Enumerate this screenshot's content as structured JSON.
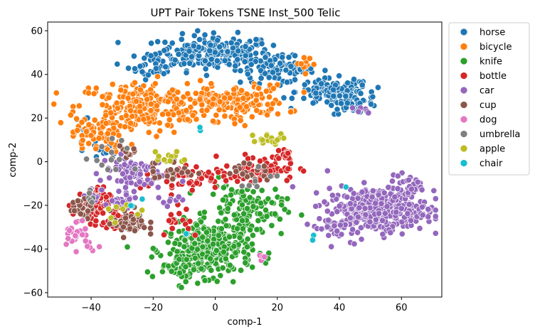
{
  "chart_data": {
    "type": "scatter",
    "title": "UPT Pair Tokens TSNE Inst_500 Telic",
    "xlabel": "comp-1",
    "ylabel": "comp-2",
    "xlim": [
      -54,
      73
    ],
    "ylim": [
      -62,
      64
    ],
    "xticks": [
      -40,
      -20,
      0,
      20,
      40,
      60
    ],
    "yticks": [
      -60,
      -40,
      -20,
      0,
      20,
      40,
      60
    ],
    "legend_position": "outside-right",
    "series": [
      {
        "name": "horse",
        "color": "#1f77b4",
        "clusters": [
          {
            "cx": 0,
            "cy": 50,
            "sx": 9,
            "sy": 4,
            "n": 230
          },
          {
            "cx": -20,
            "cy": 44,
            "sx": 4,
            "sy": 3,
            "n": 40
          },
          {
            "cx": 20,
            "cy": 42,
            "sx": 6,
            "sy": 3,
            "n": 80
          },
          {
            "cx": 38,
            "cy": 32,
            "sx": 6,
            "sy": 3,
            "n": 120
          },
          {
            "cx": 45,
            "cy": 28,
            "sx": 4,
            "sy": 3,
            "n": 45
          },
          {
            "cx": -42,
            "cy": 17,
            "sx": 2,
            "sy": 2,
            "n": 8
          },
          {
            "cx": -36,
            "cy": 5,
            "sx": 3,
            "sy": 2,
            "n": 15
          }
        ]
      },
      {
        "name": "bicycle",
        "color": "#ff7f0e",
        "clusters": [
          {
            "cx": -25,
            "cy": 25,
            "sx": 10,
            "sy": 6,
            "n": 230
          },
          {
            "cx": -38,
            "cy": 12,
            "sx": 4,
            "sy": 4,
            "n": 60
          },
          {
            "cx": 5,
            "cy": 27,
            "sx": 9,
            "sy": 4,
            "n": 170
          },
          {
            "cx": 30,
            "cy": 45,
            "sx": 2,
            "sy": 1.5,
            "n": 10
          }
        ]
      },
      {
        "name": "knife",
        "color": "#2ca02c",
        "clusters": [
          {
            "cx": -2,
            "cy": -40,
            "sx": 7,
            "sy": 6,
            "n": 300
          },
          {
            "cx": 10,
            "cy": -22,
            "sx": 6,
            "sy": 6,
            "n": 130
          },
          {
            "cx": -10,
            "cy": -48,
            "sx": 4,
            "sy": 3,
            "n": 50
          }
        ]
      },
      {
        "name": "bottle",
        "color": "#d62728",
        "clusters": [
          {
            "cx": -40,
            "cy": -20,
            "sx": 3,
            "sy": 4,
            "n": 60
          },
          {
            "cx": -33,
            "cy": -28,
            "sx": 3,
            "sy": 2,
            "n": 30
          },
          {
            "cx": 15,
            "cy": -3,
            "sx": 6,
            "sy": 3,
            "n": 60
          },
          {
            "cx": -12,
            "cy": -8,
            "sx": 6,
            "sy": 3,
            "n": 40
          },
          {
            "cx": 2,
            "cy": -7,
            "sx": 4,
            "sy": 2,
            "n": 25
          },
          {
            "cx": 22,
            "cy": 3,
            "sx": 2,
            "sy": 2,
            "n": 20
          },
          {
            "cx": -12,
            "cy": -25,
            "sx": 4,
            "sy": 5,
            "n": 15
          }
        ]
      },
      {
        "name": "car",
        "color": "#9467bd",
        "clusters": [
          {
            "cx": 52,
            "cy": -22,
            "sx": 8,
            "sy": 5,
            "n": 380
          },
          {
            "cx": 62,
            "cy": -12,
            "sx": 3,
            "sy": 3,
            "n": 40
          },
          {
            "cx": 38,
            "cy": -30,
            "sx": 3,
            "sy": 3,
            "n": 30
          },
          {
            "cx": -27,
            "cy": -5,
            "sx": 5,
            "sy": 4,
            "n": 70
          },
          {
            "cx": -30,
            "cy": -19,
            "sx": 3,
            "sy": 2,
            "n": 25
          },
          {
            "cx": -40,
            "cy": -14,
            "sx": 2,
            "sy": 2,
            "n": 10
          },
          {
            "cx": 47,
            "cy": 24,
            "sx": 1.5,
            "sy": 1,
            "n": 8
          },
          {
            "cx": -15,
            "cy": -20,
            "sx": 3,
            "sy": 2,
            "n": 8
          }
        ]
      },
      {
        "name": "cup",
        "color": "#8c564b",
        "clusters": [
          {
            "cx": -28,
            "cy": -28,
            "sx": 3,
            "sy": 3,
            "n": 50
          },
          {
            "cx": -14,
            "cy": -4,
            "sx": 4,
            "sy": 3,
            "n": 25
          },
          {
            "cx": 10,
            "cy": -5,
            "sx": 4,
            "sy": 2,
            "n": 20
          },
          {
            "cx": -42,
            "cy": -21,
            "sx": 2,
            "sy": 3,
            "n": 20
          },
          {
            "cx": -28,
            "cy": 5,
            "sx": 2,
            "sy": 1.5,
            "n": 10
          }
        ]
      },
      {
        "name": "dog",
        "color": "#e377c2",
        "clusters": [
          {
            "cx": -45,
            "cy": -32,
            "sx": 2,
            "sy": 3,
            "n": 25
          },
          {
            "cx": -40,
            "cy": -39,
            "sx": 1.5,
            "sy": 1.5,
            "n": 8
          },
          {
            "cx": 15,
            "cy": -44,
            "sx": 1,
            "sy": 1,
            "n": 4
          }
        ]
      },
      {
        "name": "umbrella",
        "color": "#7f7f7f",
        "clusters": [
          {
            "cx": -30,
            "cy": 2,
            "sx": 6,
            "sy": 4,
            "n": 15
          },
          {
            "cx": 15,
            "cy": -6,
            "sx": 4,
            "sy": 3,
            "n": 8
          },
          {
            "cx": -42,
            "cy": -15,
            "sx": 3,
            "sy": 3,
            "n": 6
          }
        ]
      },
      {
        "name": "apple",
        "color": "#bcbd22",
        "clusters": [
          {
            "cx": 18,
            "cy": 10,
            "sx": 3,
            "sy": 1.5,
            "n": 18
          },
          {
            "cx": -15,
            "cy": 2,
            "sx": 3,
            "sy": 2,
            "n": 12
          },
          {
            "cx": -30,
            "cy": -22,
            "sx": 3,
            "sy": 3,
            "n": 8
          }
        ]
      },
      {
        "name": "chair",
        "color": "#17becf",
        "clusters": [
          {
            "cx": -5,
            "cy": 15,
            "sx": 1,
            "sy": 1,
            "n": 2
          },
          {
            "cx": -25,
            "cy": -20,
            "sx": 2,
            "sy": 2,
            "n": 3
          },
          {
            "cx": 30,
            "cy": -35,
            "sx": 1,
            "sy": 1,
            "n": 2
          },
          {
            "cx": 40,
            "cy": -12,
            "sx": 1,
            "sy": 1,
            "n": 1
          },
          {
            "cx": -10,
            "cy": -30,
            "sx": 1,
            "sy": 1,
            "n": 1
          }
        ]
      }
    ]
  }
}
